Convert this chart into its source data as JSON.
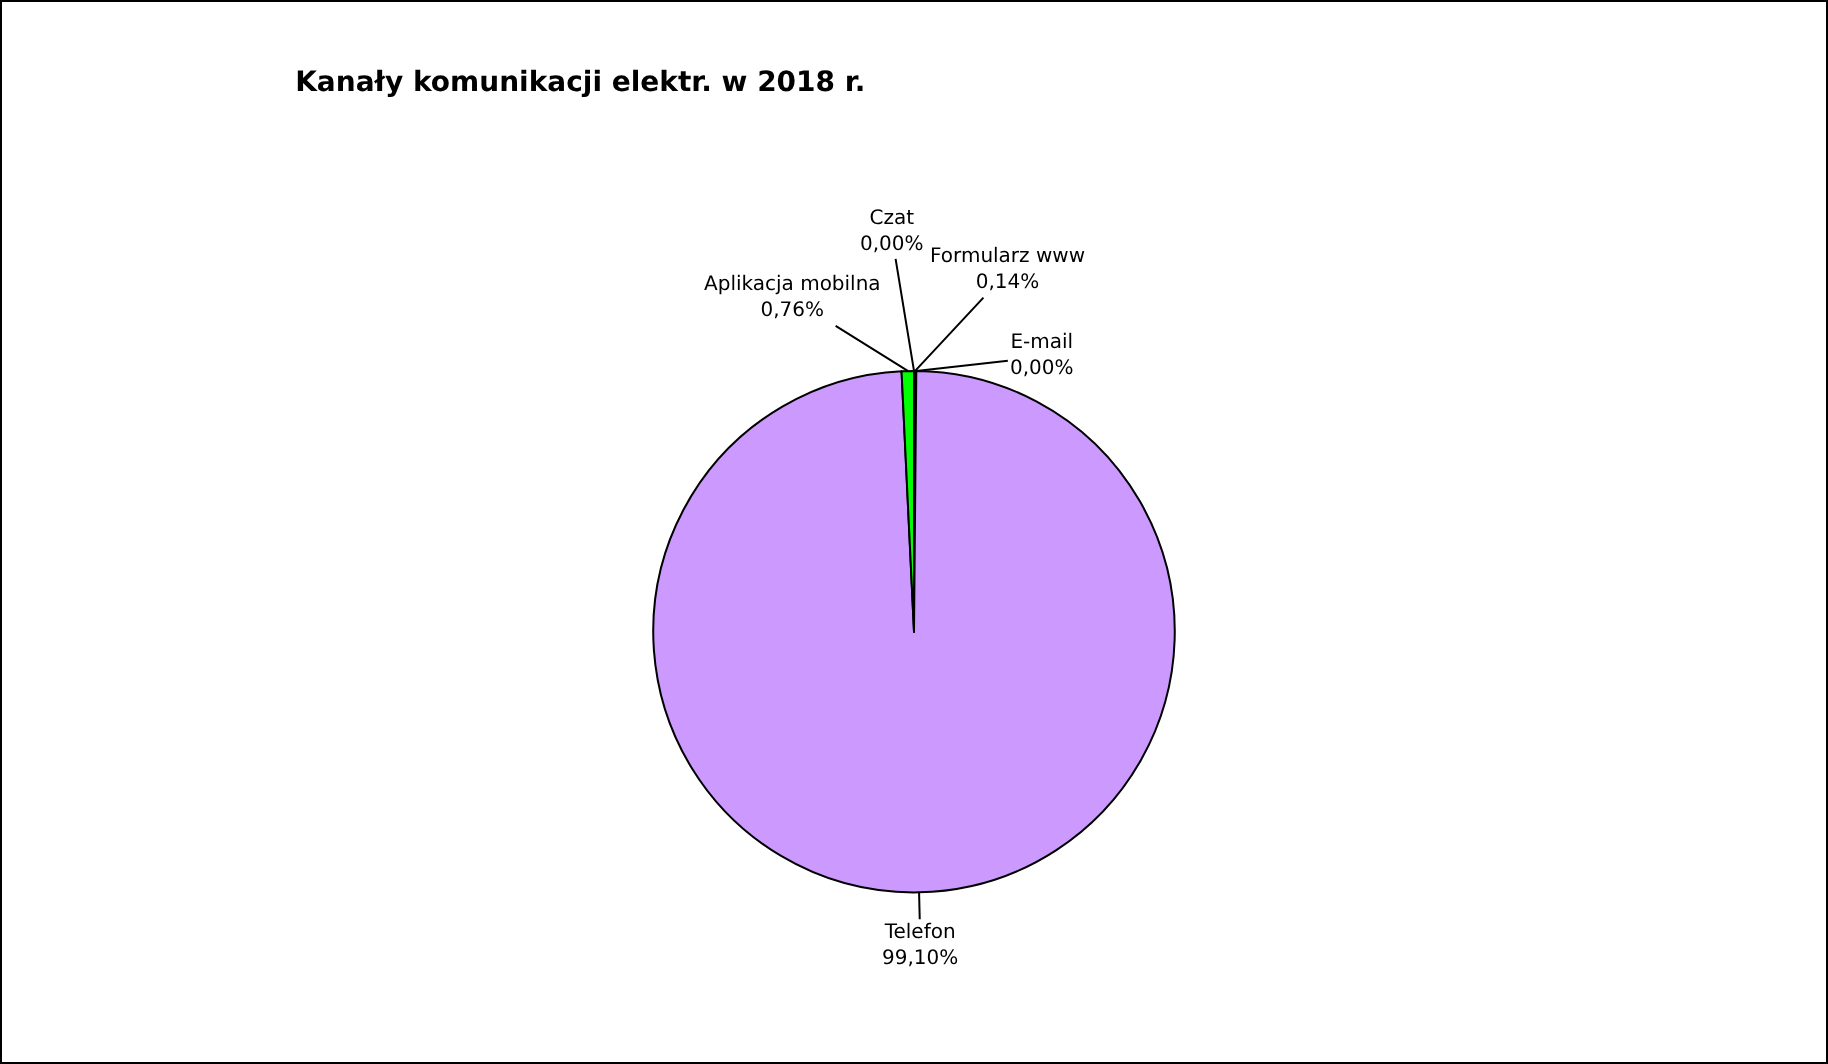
{
  "chart_data": {
    "type": "pie",
    "title": "Kanały komunikacji elektr. w 2018 r.",
    "categories": [
      "Formularz www",
      "E-mail",
      "Telefon",
      "Aplikacja mobilna",
      "Czat"
    ],
    "values": [
      0.14,
      0,
      99.1,
      0.76,
      0
    ],
    "value_labels": [
      "0,14%",
      "0,00%",
      "99,10%",
      "0,76%",
      "0,00%"
    ],
    "colors": [
      "#333399",
      "#ff6600",
      "#cc99ff",
      "#00ff00",
      "#ffff00"
    ],
    "legend": false
  }
}
